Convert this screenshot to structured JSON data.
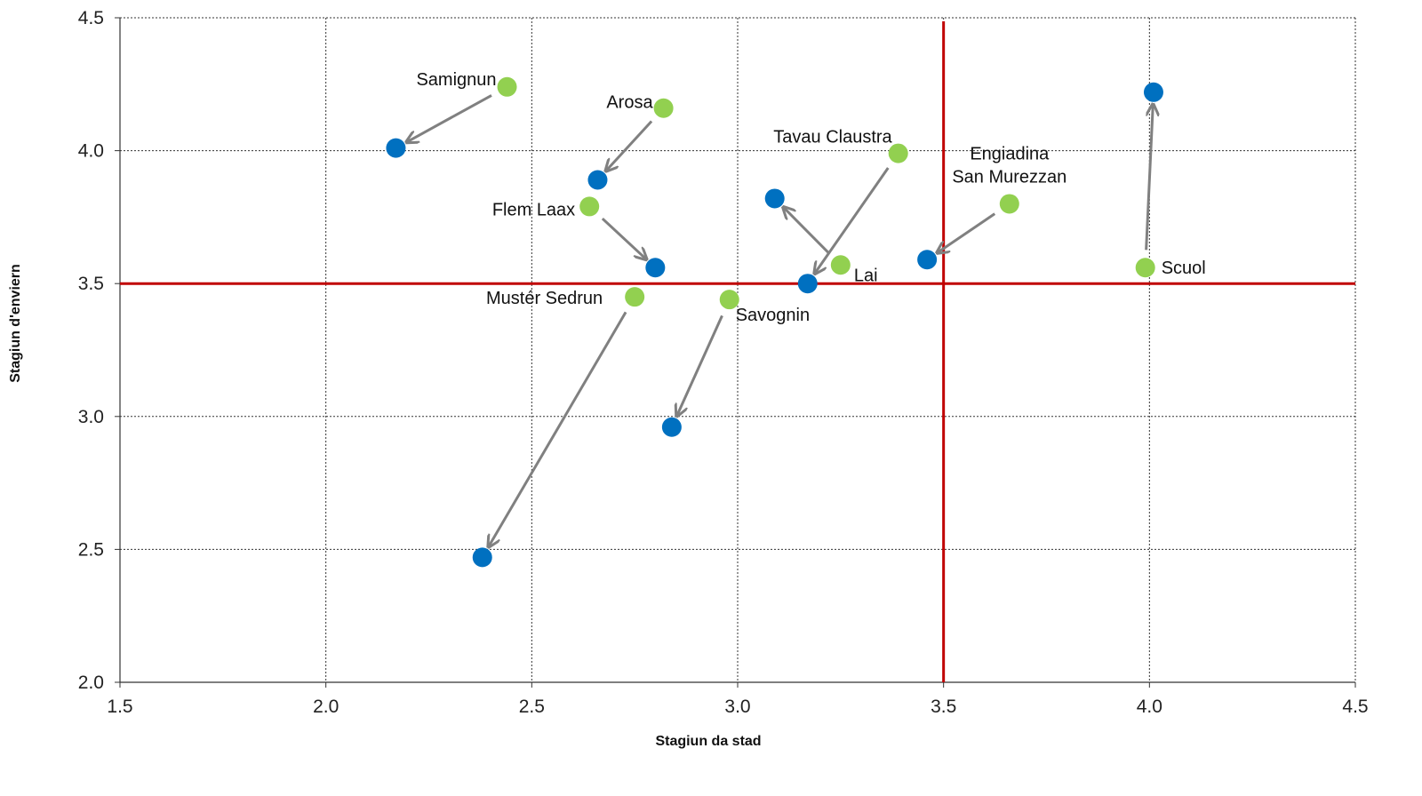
{
  "chart_data": {
    "type": "scatter",
    "title": "",
    "xlabel": "Stagiun da stad",
    "ylabel": "Stagiun d'enviern",
    "xlim": [
      1.5,
      4.5
    ],
    "ylim": [
      2.0,
      4.5
    ],
    "xticks": [
      "1.5",
      "2.0",
      "2.5",
      "3.0",
      "3.5",
      "4.0",
      "4.5"
    ],
    "yticks": [
      "2.0",
      "2.5",
      "3.0",
      "3.5",
      "4.0",
      "4.5"
    ],
    "grid": true,
    "reference_lines": {
      "x": 3.5,
      "y": 3.5,
      "color": "#c00000"
    },
    "colors": {
      "from": "#92d050",
      "to": "#0070c0",
      "arrow": "#808080",
      "grid": "#333333"
    },
    "points": [
      {
        "name": "Samignun",
        "from": [
          2.44,
          4.24
        ],
        "to": [
          2.17,
          4.01
        ]
      },
      {
        "name": "Arosa",
        "from": [
          2.82,
          4.16
        ],
        "to": [
          2.66,
          3.89
        ]
      },
      {
        "name": "Flem Laax",
        "from": [
          2.64,
          3.79
        ],
        "to": [
          2.8,
          3.56
        ]
      },
      {
        "name": "Mustér Sedrun",
        "from": [
          2.75,
          3.45
        ],
        "to": [
          2.38,
          2.47
        ]
      },
      {
        "name": "Savognin",
        "from": [
          2.98,
          3.44
        ],
        "to": [
          2.84,
          2.96
        ]
      },
      {
        "name": "Tavau Claustra",
        "from": [
          3.39,
          3.99
        ],
        "to": [
          3.17,
          3.5
        ]
      },
      {
        "name": "Lai",
        "from": [
          3.25,
          3.57
        ],
        "to": [
          3.09,
          3.82
        ]
      },
      {
        "name": "Engiadina San Murezzan",
        "label_lines": [
          "Engiadina",
          "San Murezzan"
        ],
        "from": [
          3.66,
          3.8
        ],
        "to": [
          3.46,
          3.59
        ]
      },
      {
        "name": "Scuol",
        "from": [
          3.99,
          3.56
        ],
        "to": [
          4.01,
          4.22
        ]
      }
    ]
  }
}
